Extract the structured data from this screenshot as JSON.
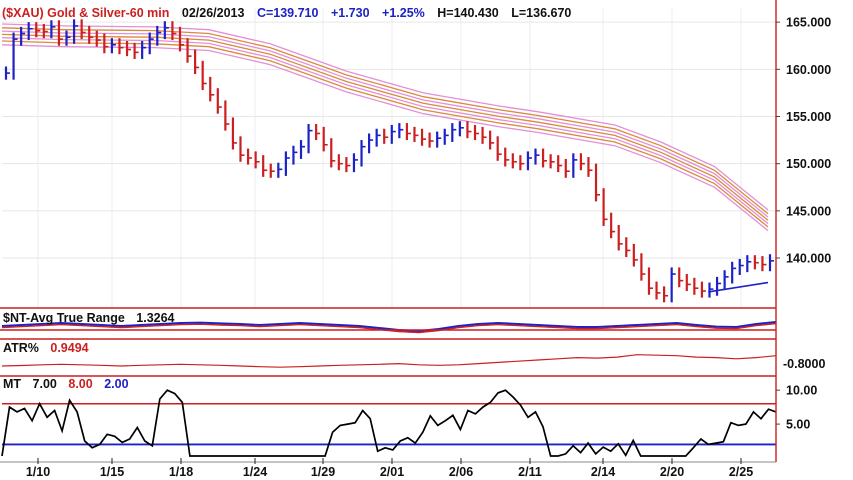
{
  "header": {
    "symbol": "($XAU) Gold & Silver-60 min",
    "date": "02/26/2013",
    "close": "C=139.710",
    "change": "+1.730",
    "change_pct": "+1.25%",
    "high": "H=140.430",
    "low": "L=136.670"
  },
  "colors": {
    "up": "#1c22c8",
    "down": "#cc1f1f",
    "envelope": "#e38fd8",
    "envelope_mid": "#d98a3a",
    "panel_line": "#cc1f1f",
    "text": "#111111"
  },
  "chart_data": [
    {
      "type": "bar",
      "title": "($XAU) Gold & Silver-60 min",
      "x_tick_labels": [
        "1/10",
        "1/15",
        "1/18",
        "1/24",
        "1/29",
        "2/01",
        "2/06",
        "2/11",
        "2/14",
        "2/20",
        "2/25"
      ],
      "y_ticks": [
        "165.000",
        "160.000",
        "155.000",
        "150.000",
        "145.000",
        "140.000"
      ],
      "ylim": [
        134.7,
        166.5
      ],
      "series": [
        {
          "kind": "price",
          "values": [
            159.6,
            163.2,
            163.8,
            164.3,
            164.1,
            164.0,
            164.5,
            163.2,
            163.4,
            164.6,
            163.9,
            163.4,
            163.1,
            162.4,
            162.6,
            162.3,
            162.1,
            161.8,
            162.3,
            163.2,
            163.9,
            164.4,
            163.8,
            162.6,
            161.4,
            160.2,
            158.5,
            157.3,
            156.0,
            154.2,
            152.2,
            150.9,
            150.6,
            150.2,
            149.3,
            149.2,
            149.4,
            150.6,
            151.2,
            151.8,
            153.5,
            153.2,
            152.0,
            150.3,
            150.0,
            149.8,
            150.4,
            151.8,
            152.5,
            153.0,
            152.8,
            153.4,
            153.6,
            153.2,
            153.0,
            152.6,
            152.4,
            152.7,
            153.0,
            153.6,
            153.8,
            153.4,
            153.2,
            152.8,
            152.2,
            151.0,
            150.4,
            150.2,
            150.0,
            150.6,
            150.9,
            150.3,
            150.2,
            149.8,
            149.2,
            150.4,
            150.0,
            149.3,
            146.7,
            144.1,
            142.8,
            141.5,
            140.8,
            139.8,
            138.3,
            136.8,
            136.3,
            136.0,
            138.3,
            137.6,
            137.2,
            136.8,
            136.5,
            136.7,
            137.3,
            138.0,
            138.9,
            139.2,
            139.6,
            139.5,
            139.3,
            139.7
          ]
        },
        {
          "kind": "moving-average envelope",
          "x_fraction": [
            0,
            0.08,
            0.2,
            0.27,
            0.35,
            0.45,
            0.55,
            0.65,
            0.7,
            0.8,
            0.86,
            0.93,
            1.0
          ],
          "center": [
            163.7,
            163.5,
            163.4,
            163.1,
            161.6,
            158.7,
            156.4,
            155.0,
            154.4,
            153.0,
            151.2,
            148.6,
            144.0
          ],
          "band_offsets": [
            -1.1,
            -0.7,
            -0.35,
            0,
            0.35,
            0.7,
            1.1
          ]
        },
        {
          "kind": "trendline",
          "points": [
            [
              0.922,
              136.4
            ],
            [
              1.0,
              137.4
            ]
          ]
        }
      ]
    },
    {
      "type": "line",
      "title": "$NT-Avg True Range",
      "value_label": "1.3264",
      "values": [
        0.45,
        0.5,
        0.55,
        0.6,
        0.55,
        0.5,
        0.45,
        0.5,
        0.55,
        0.6,
        0.62,
        0.58,
        0.55,
        0.5,
        0.55,
        0.6,
        0.55,
        0.5,
        0.45,
        0.35,
        0.25,
        0.2,
        0.3,
        0.45,
        0.55,
        0.6,
        0.55,
        0.5,
        0.45,
        0.4,
        0.4,
        0.45,
        0.5,
        0.55,
        0.6,
        0.5,
        0.42,
        0.4,
        0.55,
        0.65
      ]
    },
    {
      "type": "line",
      "title": "ATR%",
      "value_label": "0.9494",
      "y_ticks": [
        "0.8000"
      ],
      "values": [
        0.25,
        0.27,
        0.3,
        0.32,
        0.3,
        0.28,
        0.25,
        0.28,
        0.3,
        0.32,
        0.3,
        0.28,
        0.25,
        0.22,
        0.2,
        0.22,
        0.25,
        0.28,
        0.3,
        0.32,
        0.35,
        0.3,
        0.28,
        0.3,
        0.35,
        0.4,
        0.45,
        0.5,
        0.55,
        0.6,
        0.58,
        0.62,
        0.72,
        0.7,
        0.68,
        0.62,
        0.6,
        0.55,
        0.6,
        0.68
      ]
    },
    {
      "type": "line",
      "title": "MT",
      "params": [
        "7.00",
        "8.00",
        "2.00"
      ],
      "y_ticks": [
        "10.00",
        "5.00"
      ],
      "ylim": [
        0,
        11.5
      ],
      "reference_lines": [
        8.0,
        2.0
      ],
      "values": [
        0.3,
        7.5,
        6.8,
        7.3,
        5.5,
        8.0,
        6.0,
        7.0,
        4.0,
        8.5,
        6.8,
        2.5,
        1.5,
        2.0,
        3.5,
        3.2,
        2.3,
        2.8,
        4.5,
        2.5,
        1.8,
        8.7,
        10.0,
        9.5,
        8.2,
        0.3,
        0.3,
        0.3,
        0.3,
        0.3,
        0.3,
        0.3,
        0.3,
        0.3,
        0.3,
        0.3,
        0.3,
        0.3,
        0.3,
        0.3,
        0.3,
        0.3,
        0.3,
        0.3,
        3.8,
        4.8,
        5.0,
        5.2,
        7.0,
        5.8,
        1.0,
        1.5,
        1.2,
        2.5,
        3.0,
        2.2,
        3.8,
        6.2,
        4.8,
        5.5,
        6.3,
        4.2,
        7.0,
        6.5,
        7.5,
        8.2,
        9.6,
        10.0,
        9.0,
        7.8,
        6.0,
        6.8,
        4.6,
        0.3,
        0.3,
        0.6,
        1.8,
        0.8,
        2.2,
        0.6,
        1.6,
        1.0,
        2.1,
        0.4,
        2.6,
        0.3,
        0.3,
        0.3,
        0.3,
        0.3,
        0.3,
        0.3,
        1.5,
        2.8,
        2.0,
        2.2,
        2.4,
        5.2,
        4.8,
        5.0,
        6.8,
        5.8,
        7.2,
        6.8
      ]
    }
  ]
}
